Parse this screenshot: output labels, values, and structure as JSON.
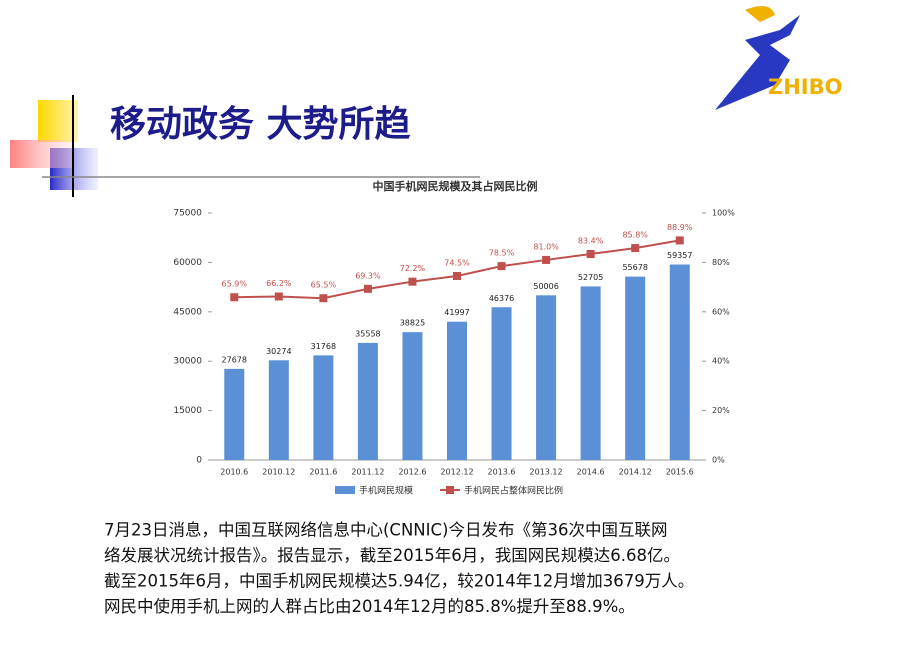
{
  "slide": {
    "title": "移动政务 大势所趋",
    "logo": "ZHIBO",
    "paragraph": [
      "7月23日消息，中国互联网络信息中心(CNNIC)今日发布《第36次中国互联网",
      "络发展状况统计报告》。报告显示，截至2015年6月，我国网民规模达6.68亿。",
      "截至2015年6月，中国手机网民规模达5.94亿，较2014年12月增加3679万人。",
      "网民中使用手机上网的人群占比由2014年12月的85.8%提升至88.9%。"
    ]
  },
  "chart_data": {
    "type": "bar",
    "title": "中国手机网民规模及其占网民比例",
    "categories": [
      "2010.6",
      "2010.12",
      "2011.6",
      "2011.12",
      "2012.6",
      "2012.12",
      "2013.6",
      "2013.12",
      "2014.6",
      "2014.12",
      "2015.6"
    ],
    "series": [
      {
        "name": "手机网民规模",
        "color": "#5b8fd6",
        "values": [
          27678,
          30274,
          31768,
          35558,
          38825,
          41997,
          46376,
          50006,
          52705,
          55678,
          59357
        ]
      },
      {
        "name": "手机网民占整体网民比例",
        "color": "#c0504d",
        "axis": "y2",
        "type": "line",
        "values": [
          65.9,
          66.2,
          65.5,
          69.3,
          72.2,
          74.5,
          78.5,
          81.0,
          83.4,
          85.8,
          88.9
        ],
        "value_labels": [
          "65.9%",
          "66.2%",
          "65.5%",
          "69.3%",
          "72.2%",
          "74.5%",
          "78.5%",
          "81.0%",
          "83.4%",
          "85.8%",
          "88.9%"
        ]
      }
    ],
    "ylim": [
      0,
      75000
    ],
    "yticks": [
      0,
      15000,
      30000,
      45000,
      60000,
      75000
    ],
    "y2lim": [
      0,
      100
    ],
    "y2ticks": [
      {
        "value": 0,
        "label": "0%"
      },
      {
        "value": 20,
        "label": "20%"
      },
      {
        "value": 40,
        "label": "40%"
      },
      {
        "value": 60,
        "label": "60%"
      },
      {
        "value": 80,
        "label": "80%"
      },
      {
        "value": 100,
        "label": "100%"
      }
    ]
  }
}
